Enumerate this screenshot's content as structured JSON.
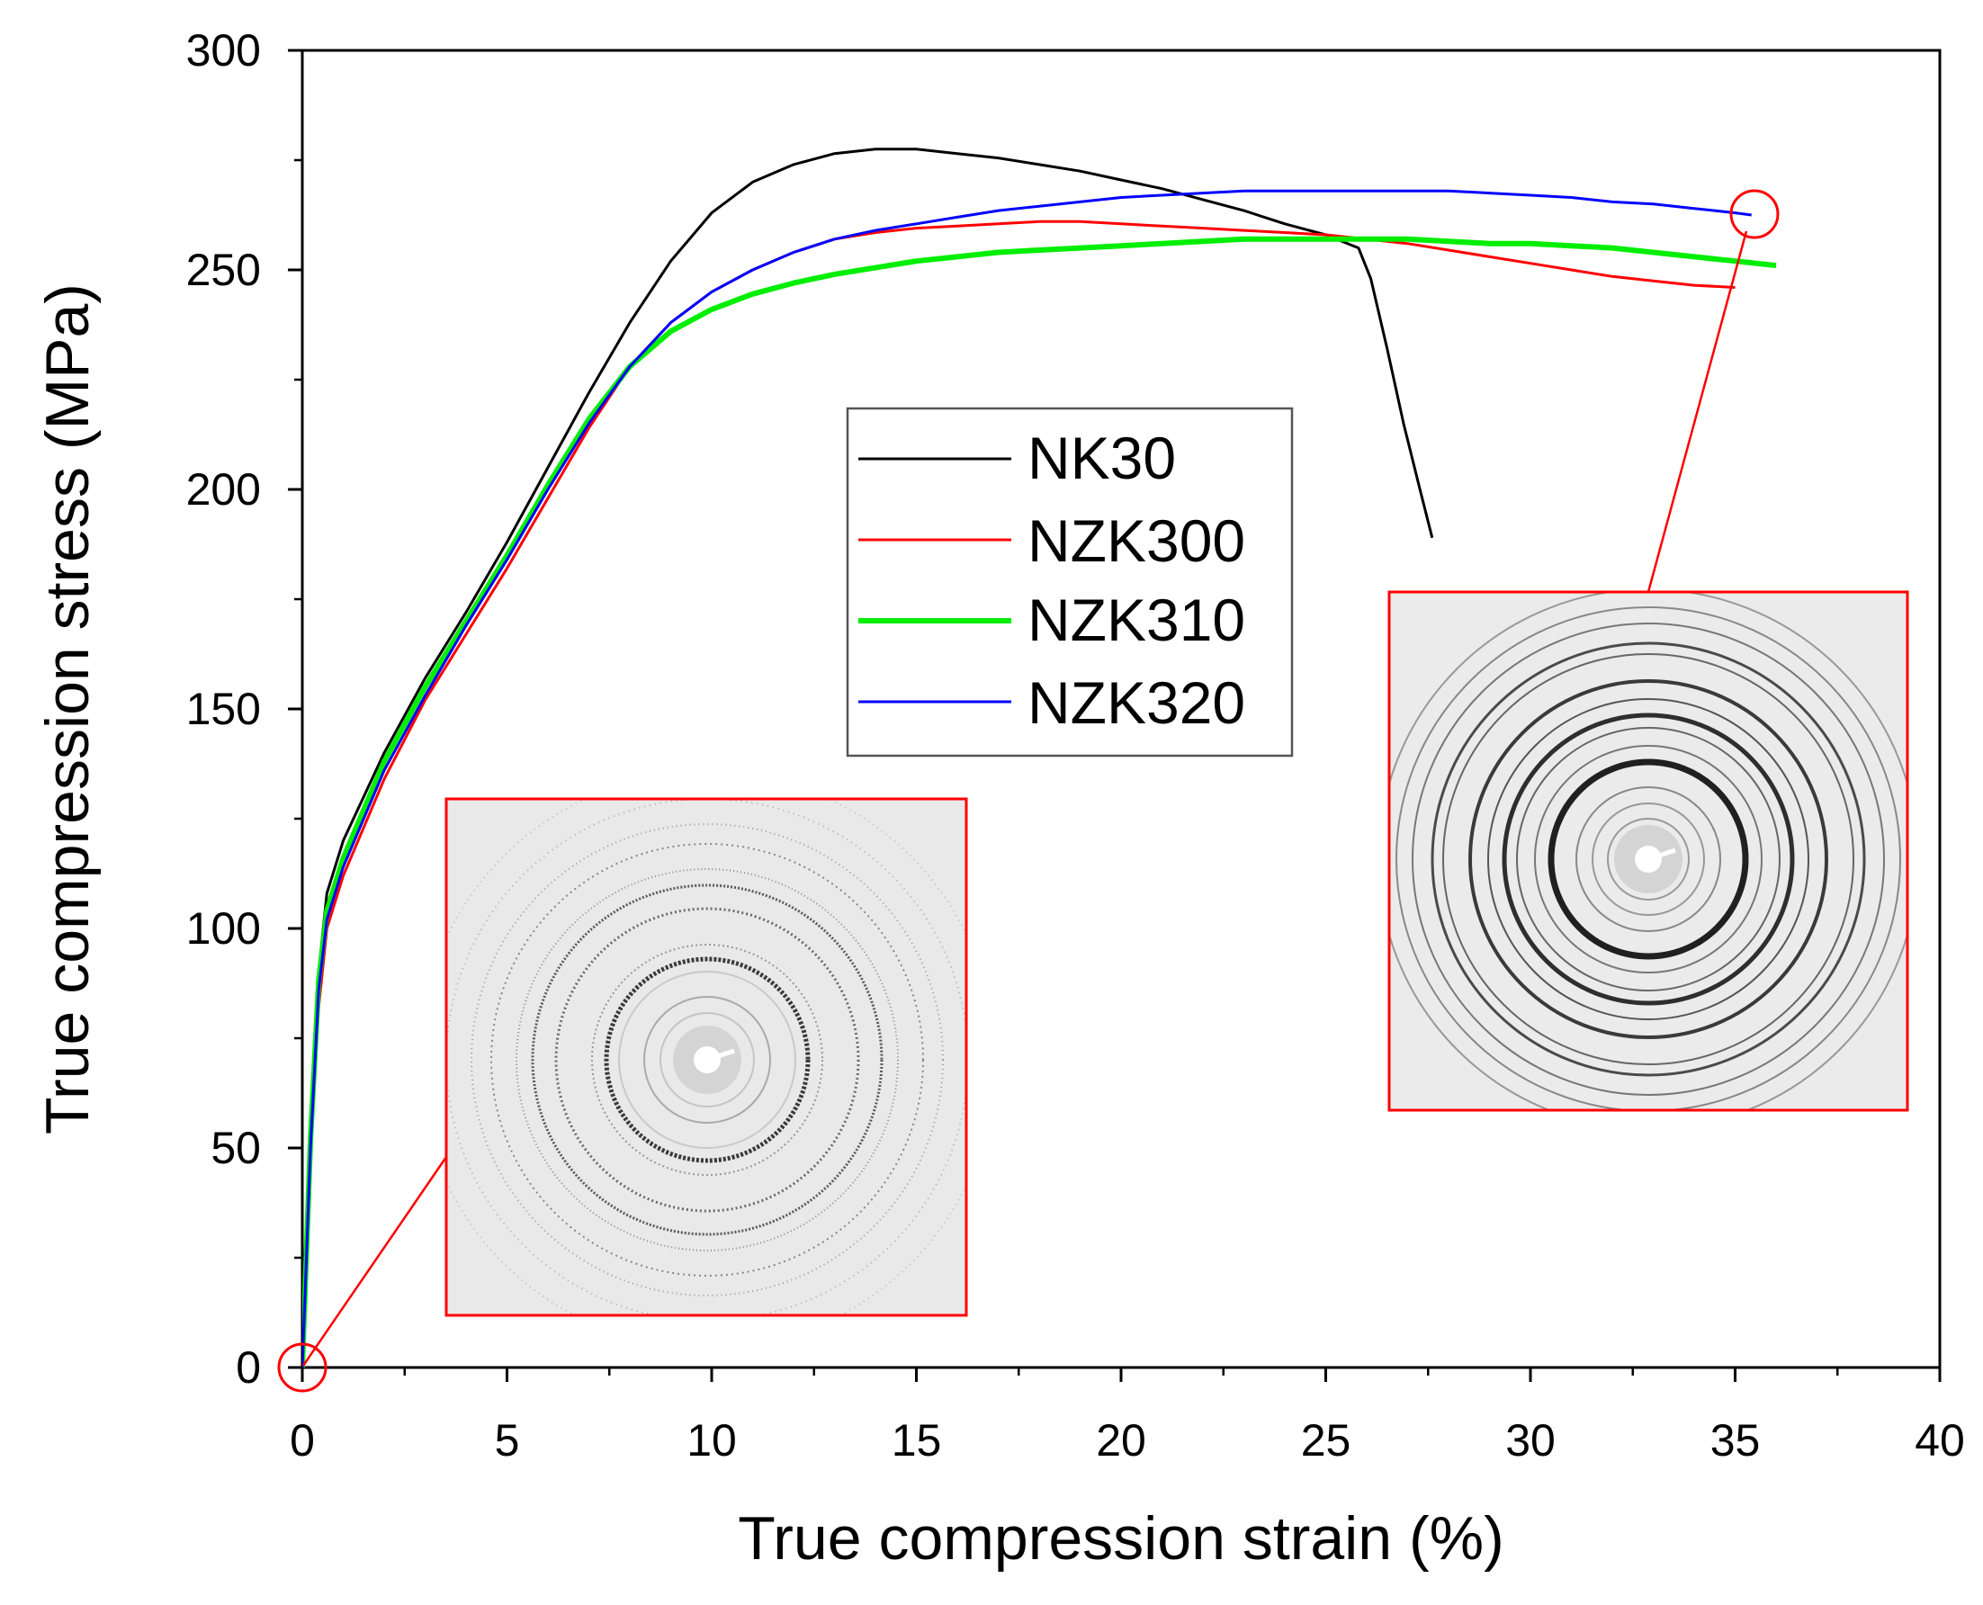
{
  "chart_data": {
    "type": "line",
    "title": "",
    "xlabel": "True compression strain (%)",
    "ylabel": "True compression stress (MPa)",
    "xlim": [
      0,
      40
    ],
    "ylim": [
      0,
      300
    ],
    "xticks": [
      0,
      5,
      10,
      15,
      20,
      25,
      30,
      35,
      40
    ],
    "yticks": [
      0,
      50,
      100,
      150,
      200,
      250,
      300
    ],
    "grid": false,
    "legend_position": "center",
    "series": [
      {
        "name": "NK30",
        "color": "#000000",
        "x": [
          0,
          0.2,
          0.4,
          0.6,
          1,
          2,
          3,
          4,
          5,
          6,
          7,
          8,
          9,
          10,
          11,
          12,
          13,
          14,
          15,
          16,
          17,
          18,
          19,
          20,
          21,
          22,
          23,
          24,
          25,
          25.8,
          26.1,
          26.5,
          26.9,
          27.3,
          27.6
        ],
        "y": [
          0,
          55,
          90,
          108,
          120,
          140,
          157,
          172,
          188,
          205,
          222,
          238,
          252,
          263,
          270,
          274,
          276.5,
          277.5,
          277.5,
          276.5,
          275.5,
          274,
          272.5,
          270.5,
          268.5,
          266,
          263.5,
          260.5,
          258,
          255,
          248,
          232,
          215,
          200,
          189
        ]
      },
      {
        "name": "NZK300",
        "color": "#ff0000",
        "x": [
          0,
          0.2,
          0.4,
          0.6,
          1,
          2,
          3,
          4,
          5,
          6,
          7,
          8,
          9,
          10,
          11,
          12,
          13,
          14,
          15,
          16,
          17,
          18,
          19,
          20,
          21,
          22,
          23,
          24,
          25,
          26,
          27,
          28,
          29,
          30,
          31,
          32,
          33,
          34,
          35
        ],
        "y": [
          0,
          48,
          82,
          100,
          112,
          134,
          152,
          167,
          182,
          198,
          214,
          228,
          238,
          245,
          250,
          254,
          257,
          258.5,
          259.5,
          260,
          260.5,
          261,
          261,
          260.5,
          260,
          259.5,
          259,
          258.5,
          258,
          257,
          256,
          254.5,
          253,
          251.5,
          250,
          248.5,
          247.5,
          246.5,
          246
        ]
      },
      {
        "name": "NZK310",
        "color": "#00ee00",
        "x": [
          0,
          0.2,
          0.4,
          0.6,
          1,
          2,
          3,
          4,
          5,
          6,
          7,
          8,
          9,
          10,
          11,
          12,
          13,
          14,
          15,
          16,
          17,
          18,
          19,
          20,
          21,
          22,
          23,
          24,
          25,
          26,
          27,
          28,
          29,
          30,
          31,
          32,
          33,
          34,
          35,
          36
        ],
        "y": [
          0,
          52,
          88,
          104,
          116,
          138,
          155,
          170,
          185,
          201,
          216,
          228,
          236,
          241,
          244.5,
          247,
          249,
          250.5,
          252,
          253,
          254,
          254.5,
          255,
          255.5,
          256,
          256.5,
          257,
          257,
          257,
          257,
          257,
          256.5,
          256,
          256,
          255.5,
          255,
          254,
          253,
          252,
          251
        ]
      },
      {
        "name": "NZK320",
        "color": "#0000ff",
        "x": [
          0,
          0.2,
          0.4,
          0.6,
          1,
          2,
          3,
          4,
          5,
          6,
          7,
          8,
          9,
          10,
          11,
          12,
          13,
          14,
          15,
          16,
          17,
          18,
          19,
          20,
          21,
          22,
          23,
          24,
          25,
          26,
          27,
          28,
          29,
          30,
          31,
          32,
          33,
          34,
          35,
          35.4
        ],
        "y": [
          0,
          50,
          86,
          102,
          114,
          136,
          153,
          169,
          184,
          200,
          215,
          228,
          238,
          245,
          250,
          254,
          257,
          259,
          260.5,
          262,
          263.5,
          264.5,
          265.5,
          266.5,
          267,
          267.5,
          268,
          268,
          268,
          268,
          268,
          268,
          267.5,
          267,
          266.5,
          265.5,
          265,
          264,
          263,
          262.5
        ]
      }
    ],
    "annotations": [
      {
        "type": "circle-marker",
        "x": 0,
        "y": 0,
        "color": "#ff0000"
      },
      {
        "type": "circle-marker",
        "x": 35.4,
        "y": 263,
        "color": "#ff0000"
      },
      {
        "type": "inset-image",
        "content": "diffraction ring pattern",
        "linked_to": "marker-origin"
      },
      {
        "type": "inset-image",
        "content": "diffraction ring pattern",
        "linked_to": "marker-end"
      }
    ]
  }
}
